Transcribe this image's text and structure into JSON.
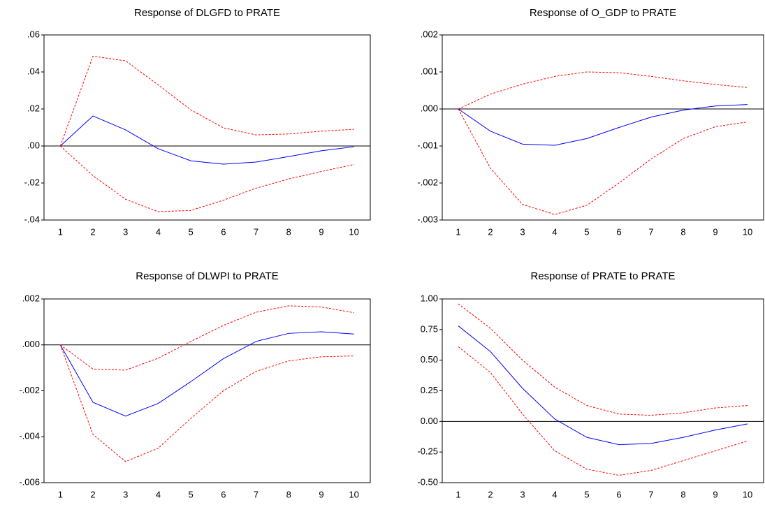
{
  "chart_data": [
    {
      "type": "line",
      "title": "Response of DLGFD to PRATE",
      "categories": [
        "1",
        "2",
        "3",
        "4",
        "5",
        "6",
        "7",
        "8",
        "9",
        "10"
      ],
      "series": [
        {
          "color": "#0000ff",
          "dashed": false,
          "values": [
            0,
            0.0162,
            0.0087,
            -0.0015,
            -0.008,
            -0.0098,
            -0.0087,
            -0.0057,
            -0.0026,
            -0.0004
          ]
        },
        {
          "color": "#ff0000",
          "dashed": true,
          "values": [
            0,
            0.0485,
            0.046,
            0.033,
            0.0195,
            0.0098,
            0.006,
            0.0065,
            0.008,
            0.009
          ]
        },
        {
          "color": "#ff0000",
          "dashed": true,
          "values": [
            0,
            -0.016,
            -0.0288,
            -0.0355,
            -0.0348,
            -0.0293,
            -0.0228,
            -0.0178,
            -0.0138,
            -0.01
          ]
        }
      ],
      "hline": 0,
      "ylim": [
        -0.04,
        0.06
      ],
      "yticks": [
        {
          "value": 0.06,
          "label": ".06"
        },
        {
          "value": 0.04,
          "label": ".04"
        },
        {
          "value": 0.02,
          "label": ".02"
        },
        {
          "value": 0,
          "label": ".00"
        },
        {
          "value": -0.02,
          "label": "-.02"
        },
        {
          "value": -0.04,
          "label": "-.04"
        }
      ]
    },
    {
      "type": "line",
      "title": "Response of O_GDP to PRATE",
      "categories": [
        "1",
        "2",
        "3",
        "4",
        "5",
        "6",
        "7",
        "8",
        "9",
        "10"
      ],
      "series": [
        {
          "color": "#0000ff",
          "dashed": false,
          "values": [
            0,
            -0.0006,
            -0.00095,
            -0.00098,
            -0.0008,
            -0.0005,
            -0.00022,
            -3e-05,
            8e-05,
            0.00012
          ]
        },
        {
          "color": "#ff0000",
          "dashed": true,
          "values": [
            0,
            0.0004,
            0.00067,
            0.00088,
            0.001,
            0.00098,
            0.00088,
            0.00076,
            0.00066,
            0.00058
          ]
        },
        {
          "color": "#ff0000",
          "dashed": true,
          "values": [
            0,
            -0.0016,
            -0.00258,
            -0.00285,
            -0.0026,
            -0.002,
            -0.00135,
            -0.0008,
            -0.00048,
            -0.00035
          ]
        }
      ],
      "hline": 0,
      "ylim": [
        -0.003,
        0.002
      ],
      "yticks": [
        {
          "value": 0.002,
          "label": ".002"
        },
        {
          "value": 0.001,
          "label": ".001"
        },
        {
          "value": 0,
          "label": ".000"
        },
        {
          "value": -0.001,
          "label": "-.001"
        },
        {
          "value": -0.002,
          "label": "-.002"
        },
        {
          "value": -0.003,
          "label": "-.003"
        }
      ]
    },
    {
      "type": "line",
      "title": "Response of DLWPI to PRATE",
      "categories": [
        "1",
        "2",
        "3",
        "4",
        "5",
        "6",
        "7",
        "8",
        "9",
        "10"
      ],
      "series": [
        {
          "color": "#0000ff",
          "dashed": false,
          "values": [
            0,
            -0.0025,
            -0.0031,
            -0.00255,
            -0.0016,
            -0.0006,
            0.00015,
            0.0005,
            0.00057,
            0.00047
          ]
        },
        {
          "color": "#ff0000",
          "dashed": true,
          "values": [
            0,
            -0.00105,
            -0.0011,
            -0.00058,
            0.00015,
            0.00085,
            0.00142,
            0.0017,
            0.00165,
            0.0014
          ]
        },
        {
          "color": "#ff0000",
          "dashed": true,
          "values": [
            0,
            -0.0039,
            -0.00508,
            -0.0045,
            -0.0032,
            -0.002,
            -0.00115,
            -0.0007,
            -0.00052,
            -0.00048
          ]
        }
      ],
      "hline": 0,
      "ylim": [
        -0.006,
        0.002
      ],
      "yticks": [
        {
          "value": 0.002,
          "label": ".002"
        },
        {
          "value": 0,
          "label": ".000"
        },
        {
          "value": -0.002,
          "label": "-.002"
        },
        {
          "value": -0.004,
          "label": "-.004"
        },
        {
          "value": -0.006,
          "label": "-.006"
        }
      ]
    },
    {
      "type": "line",
      "title": "Response of PRATE to PRATE",
      "categories": [
        "1",
        "2",
        "3",
        "4",
        "5",
        "6",
        "7",
        "8",
        "9",
        "10"
      ],
      "series": [
        {
          "color": "#0000ff",
          "dashed": false,
          "values": [
            0.78,
            0.57,
            0.27,
            0.02,
            -0.13,
            -0.19,
            -0.18,
            -0.13,
            -0.07,
            -0.02
          ]
        },
        {
          "color": "#ff0000",
          "dashed": true,
          "values": [
            0.96,
            0.76,
            0.5,
            0.28,
            0.13,
            0.06,
            0.05,
            0.07,
            0.11,
            0.13
          ]
        },
        {
          "color": "#ff0000",
          "dashed": true,
          "values": [
            0.61,
            0.4,
            0.06,
            -0.24,
            -0.39,
            -0.44,
            -0.4,
            -0.32,
            -0.24,
            -0.16
          ]
        }
      ],
      "hline": 0,
      "ylim": [
        -0.5,
        1.0
      ],
      "yticks": [
        {
          "value": 1.0,
          "label": "1.00"
        },
        {
          "value": 0.75,
          "label": "0.75"
        },
        {
          "value": 0.5,
          "label": "0.50"
        },
        {
          "value": 0.25,
          "label": "0.25"
        },
        {
          "value": 0,
          "label": "0.00"
        },
        {
          "value": -0.25,
          "label": "-0.25"
        },
        {
          "value": -0.5,
          "label": "-0.50"
        }
      ]
    }
  ]
}
